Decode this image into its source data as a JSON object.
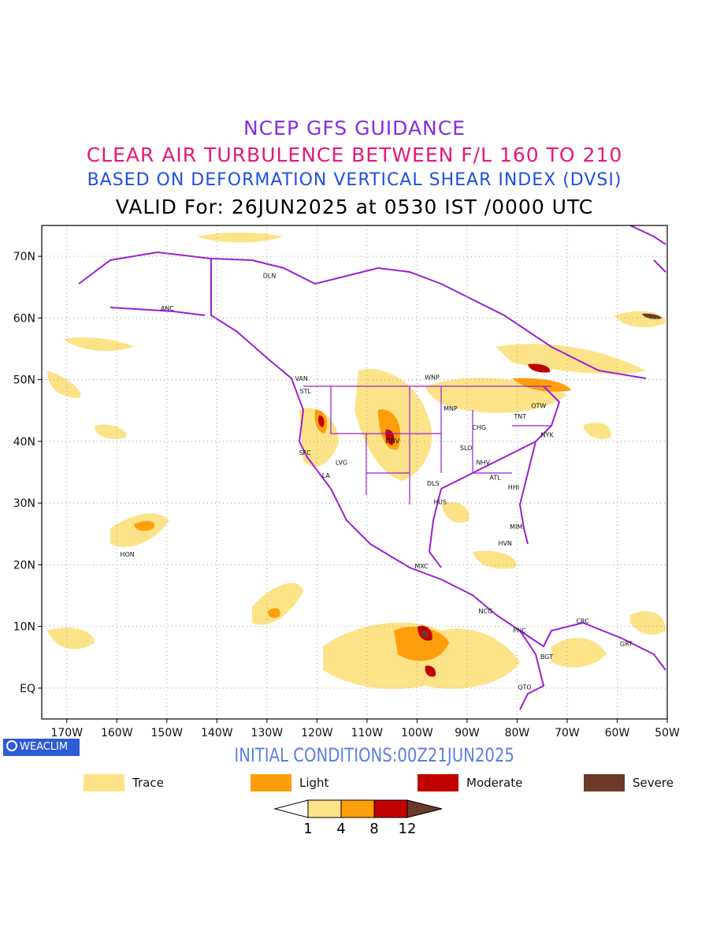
{
  "titles": {
    "line1": "NCEP GFS GUIDANCE",
    "line2": "CLEAR AIR TURBULENCE BETWEEN F/L 160 TO 210",
    "line3": "BASED ON DEFORMATION VERTICAL SHEAR INDEX (DVSI)",
    "line4": "VALID For: 26JUN2025 at 0530 IST /0000 UTC"
  },
  "map": {
    "lat_labels": [
      "70N",
      "60N",
      "50N",
      "40N",
      "30N",
      "20N",
      "10N",
      "EQ"
    ],
    "lon_labels": [
      "170W",
      "160W",
      "150W",
      "140W",
      "130W",
      "120W",
      "110W",
      "100W",
      "90W",
      "80W",
      "70W",
      "60W",
      "50W"
    ],
    "lon_range": [
      -175,
      -50
    ],
    "lat_range": [
      -5,
      75
    ],
    "stations": [
      {
        "code": "DLN",
        "lon": -129.5,
        "lat": 66.5
      },
      {
        "code": "ANC",
        "lon": -149.9,
        "lat": 61.2
      },
      {
        "code": "VAN",
        "lon": -123.1,
        "lat": 49.8
      },
      {
        "code": "STL",
        "lon": -122.3,
        "lat": 47.8
      },
      {
        "code": "WNP",
        "lon": -97.0,
        "lat": 50.0
      },
      {
        "code": "MNP",
        "lon": -93.3,
        "lat": 45.0
      },
      {
        "code": "OTW",
        "lon": -75.7,
        "lat": 45.4
      },
      {
        "code": "TNT",
        "lon": -79.4,
        "lat": 43.7
      },
      {
        "code": "CHG",
        "lon": -87.6,
        "lat": 41.9
      },
      {
        "code": "NYK",
        "lon": -74.0,
        "lat": 40.7
      },
      {
        "code": "DNV",
        "lon": -104.9,
        "lat": 39.7
      },
      {
        "code": "SLO",
        "lon": -90.2,
        "lat": 38.6
      },
      {
        "code": "SFC",
        "lon": -122.4,
        "lat": 37.8
      },
      {
        "code": "LVG",
        "lon": -115.1,
        "lat": 36.2
      },
      {
        "code": "NHV",
        "lon": -86.8,
        "lat": 36.2
      },
      {
        "code": "LA",
        "lon": -118.2,
        "lat": 34.1
      },
      {
        "code": "ATL",
        "lon": -84.4,
        "lat": 33.8
      },
      {
        "code": "DLS",
        "lon": -96.8,
        "lat": 32.8
      },
      {
        "code": "HHI",
        "lon": -80.7,
        "lat": 32.2
      },
      {
        "code": "HUS",
        "lon": -95.4,
        "lat": 29.8
      },
      {
        "code": "MIM",
        "lon": -80.2,
        "lat": 25.8
      },
      {
        "code": "HON",
        "lon": -157.9,
        "lat": 21.3
      },
      {
        "code": "HVN",
        "lon": -82.4,
        "lat": 23.1
      },
      {
        "code": "MXC",
        "lon": -99.1,
        "lat": 19.4
      },
      {
        "code": "CRC",
        "lon": -66.9,
        "lat": 10.5
      },
      {
        "code": "NCG",
        "lon": -86.3,
        "lat": 12.1
      },
      {
        "code": "PNC",
        "lon": -79.5,
        "lat": 9.0
      },
      {
        "code": "GRT",
        "lon": -58.2,
        "lat": 6.8
      },
      {
        "code": "BGT",
        "lon": -74.1,
        "lat": 4.7
      },
      {
        "code": "QTO",
        "lon": -78.5,
        "lat": -0.2
      }
    ]
  },
  "branding": {
    "badge_text": "WEACLIM"
  },
  "initial_conditions": "INITIAL CONDITIONS:00Z21JUN2025",
  "legend": {
    "items": [
      {
        "label": "Trace",
        "color": "#fde388"
      },
      {
        "label": "Light",
        "color": "#ff9e0b"
      },
      {
        "label": "Moderate",
        "color": "#c30000"
      },
      {
        "label": "Severe",
        "color": "#6b3a2a"
      }
    ]
  },
  "colorbar": {
    "ticks": [
      "1",
      "4",
      "8",
      "12"
    ],
    "colors": [
      "#ffffff",
      "#fde388",
      "#ff9e0b",
      "#c30000",
      "#6b3a2a"
    ]
  },
  "colors": {
    "coast": "#9b1fd1",
    "turbulence_trace": "#fde388",
    "turbulence_light": "#ff9e0b",
    "turbulence_moderate": "#c30000",
    "turbulence_severe": "#6b3a2a"
  }
}
